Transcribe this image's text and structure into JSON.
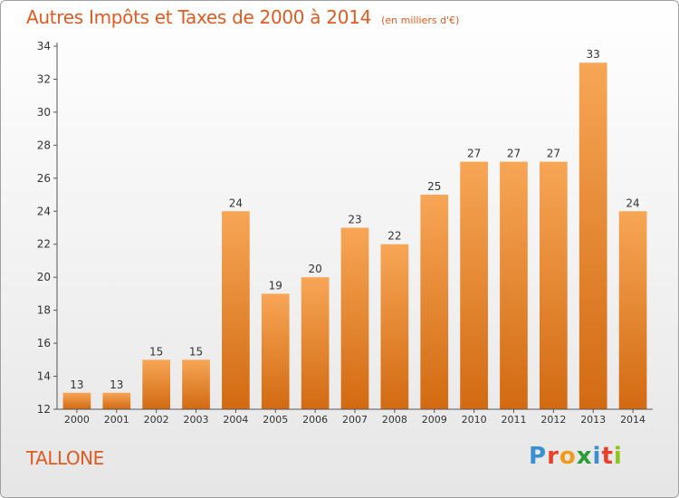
{
  "title": "Autres Impôts et Taxes de 2000 à 2014",
  "unit_note": "(en milliers d'€)",
  "commune": "TALLONE",
  "logo": {
    "text": "Proxiti",
    "letters": [
      {
        "ch": "P",
        "color": "#3a8fd0"
      },
      {
        "ch": "r",
        "color": "#e8402a"
      },
      {
        "ch": "o",
        "color": "#f29a1a"
      },
      {
        "ch": "x",
        "color": "#2a9d3a"
      },
      {
        "ch": "i",
        "color": "#3a8fd0"
      },
      {
        "ch": "t",
        "color": "#e8402a"
      },
      {
        "ch": "i",
        "color": "#8fc31f"
      }
    ]
  },
  "colors": {
    "bar_top": "#f7a656",
    "bar_bottom": "#d26a12",
    "text_accent": "#e05a20",
    "axis": "#555555"
  },
  "chart_data": {
    "type": "bar",
    "title": "Autres Impôts et Taxes de 2000 à 2014",
    "subtitle": "(en milliers d'€)",
    "categories": [
      "2000",
      "2001",
      "2002",
      "2003",
      "2004",
      "2005",
      "2006",
      "2007",
      "2008",
      "2009",
      "2010",
      "2011",
      "2012",
      "2013",
      "2014"
    ],
    "values": [
      13,
      13,
      15,
      15,
      24,
      19,
      20,
      23,
      22,
      25,
      27,
      27,
      27,
      33,
      24
    ],
    "data_labels": [
      "13",
      "13",
      "15",
      "15",
      "24",
      "19",
      "20",
      "23",
      "22",
      "25",
      "27",
      "27",
      "27",
      "33",
      "24"
    ],
    "ylim": [
      12,
      34
    ],
    "yticks": [
      12,
      14,
      16,
      18,
      20,
      22,
      24,
      26,
      28,
      30,
      32,
      34
    ],
    "xlabel": "",
    "ylabel": "",
    "grid": false,
    "legend": "none"
  }
}
